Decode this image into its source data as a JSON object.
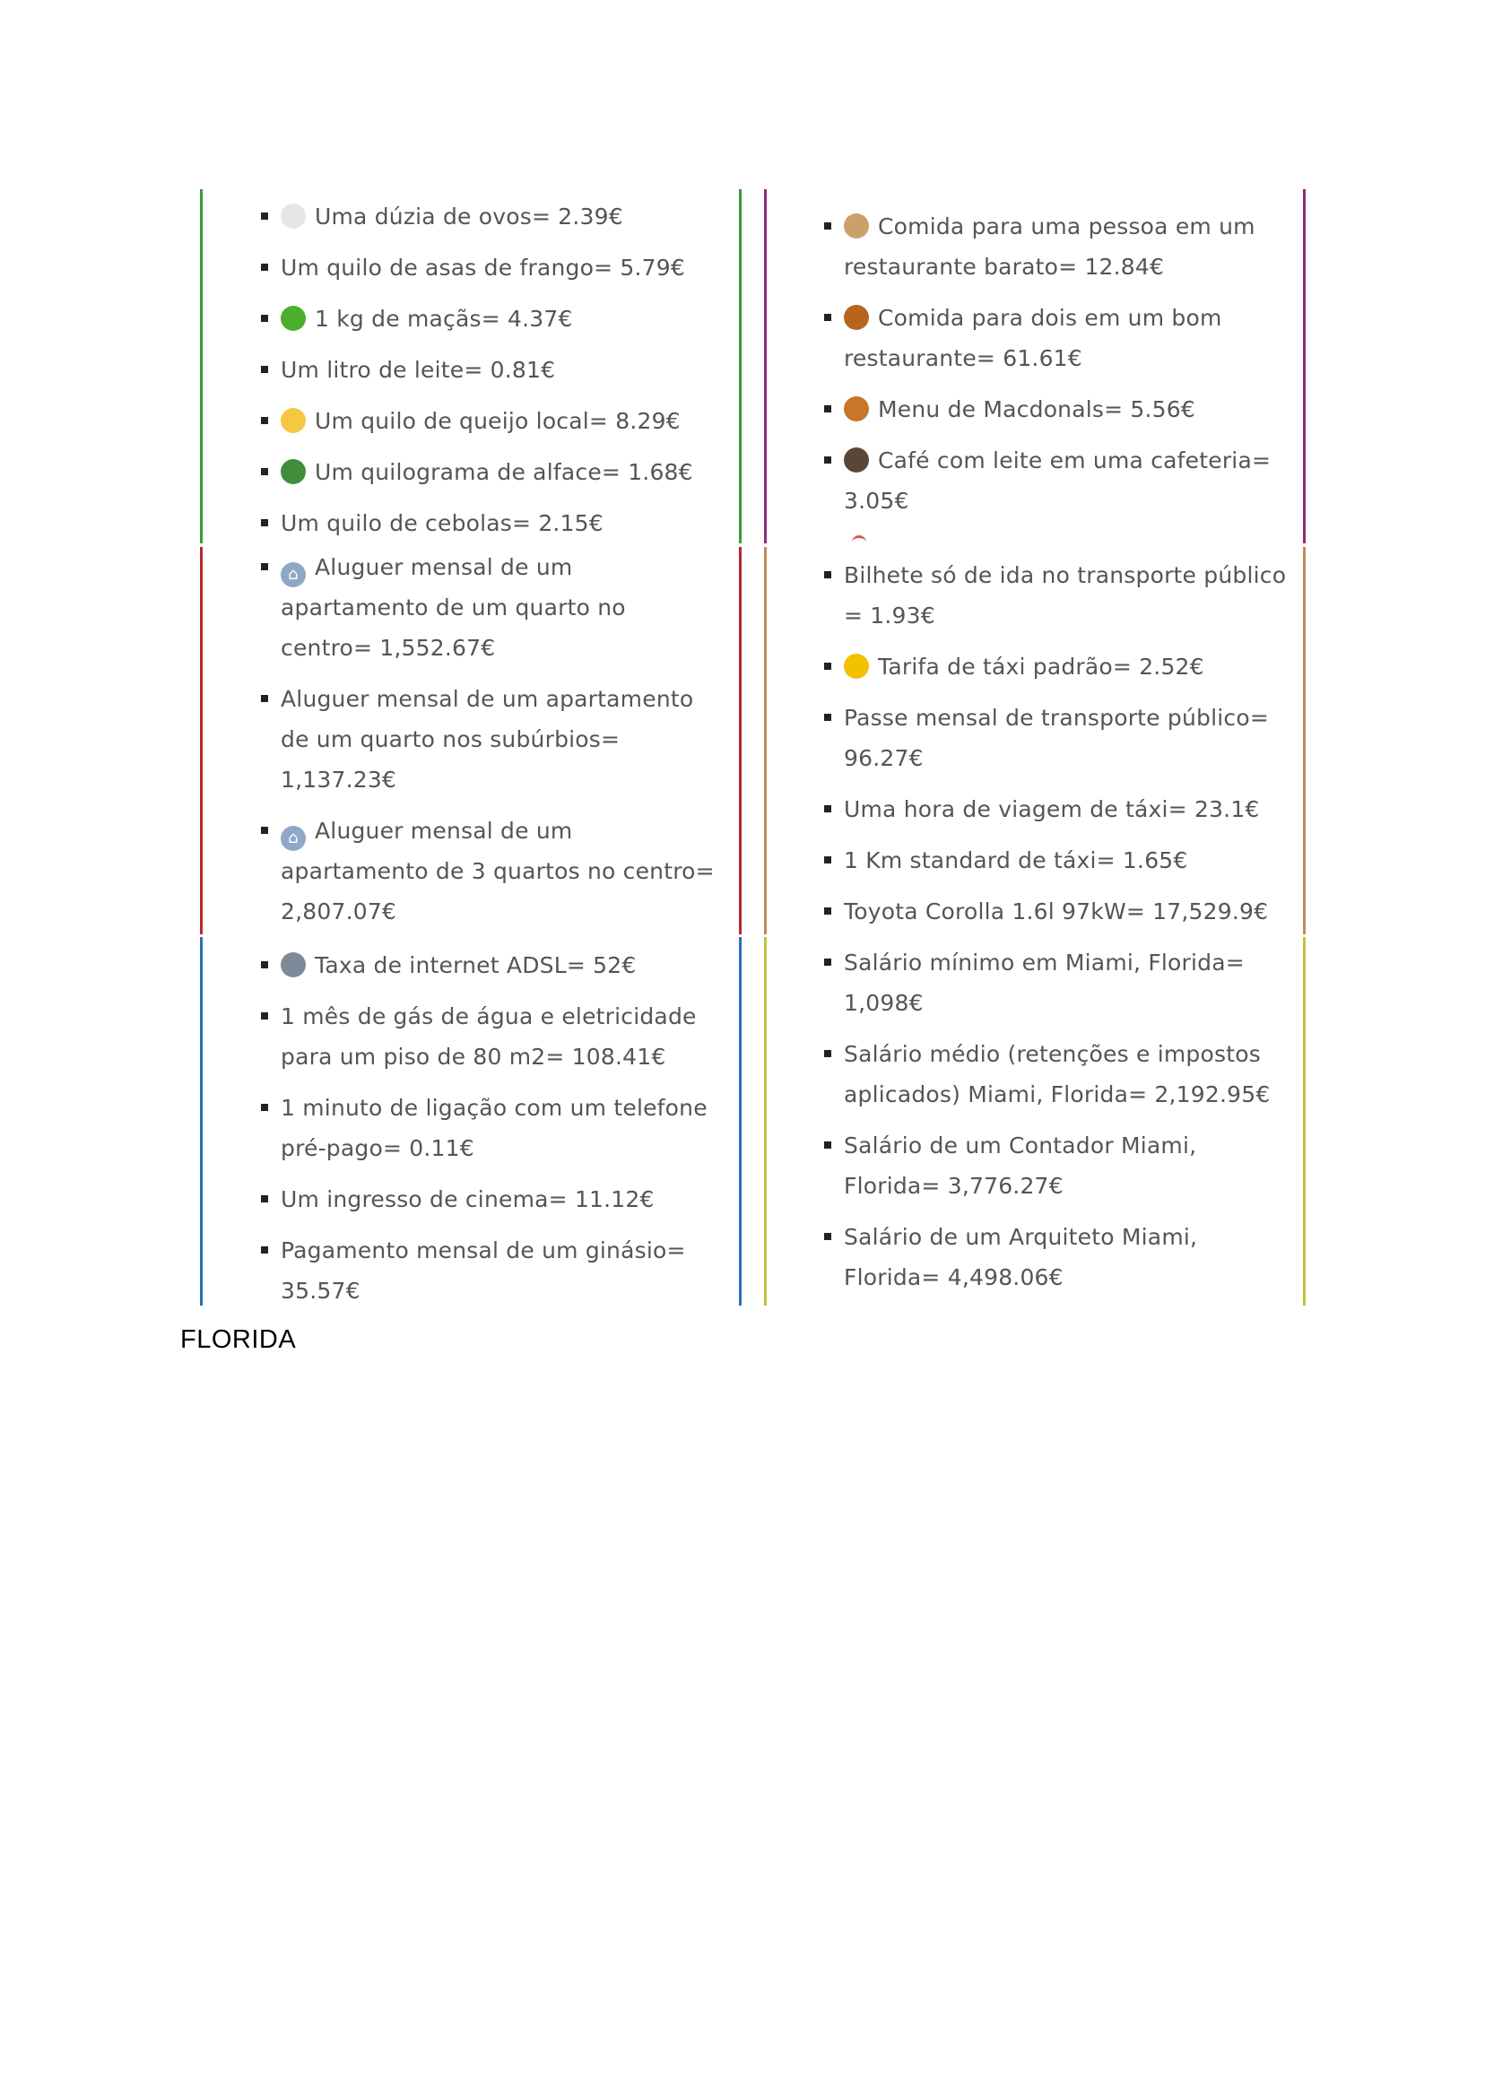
{
  "panels": [
    {
      "id": "food",
      "color": "#3a9a3a",
      "items": [
        {
          "icon": "egg-icon",
          "icon_color": "#e6e6e6",
          "text": "Uma dúzia de ovos= 2.39€"
        },
        {
          "icon": "",
          "text": "Um quilo de asas de frango= 5.79€"
        },
        {
          "icon": "green-apple-icon",
          "icon_color": "#4caf2a",
          "text": "1 kg de maçãs= 4.37€"
        },
        {
          "icon": "",
          "text": "Um litro de leite= 0.81€"
        },
        {
          "icon": "cheese-icon",
          "icon_color": "#f5c842",
          "text": "Um quilo de queijo local= 8.29€"
        },
        {
          "icon": "salad-icon",
          "icon_color": "#3f8f3a",
          "text": "Um quilograma de alface= 1.68€"
        },
        {
          "icon": "",
          "text": "Um quilo de cebolas= 2.15€"
        }
      ]
    },
    {
      "id": "restaurants",
      "color": "#8e2a7a",
      "items": [
        {
          "icon": "burrito-icon",
          "icon_color": "#c9a26b",
          "text": "Comida para uma pessoa em um restaurante barato= 12.84€"
        },
        {
          "icon": "shallow-pan-icon",
          "icon_color": "#b5651d",
          "text": "Comida para dois em um bom restaurante= 61.61€"
        },
        {
          "icon": "hamburger-icon",
          "icon_color": "#c8772a",
          "text": "Menu de Macdonals= 5.56€"
        },
        {
          "icon": "coffee-icon",
          "icon_color": "#5a4636",
          "text": "Café com leite em uma cafeteria= 3.05€"
        }
      ]
    },
    {
      "id": "housing",
      "color": "#b22a2a",
      "items": [
        {
          "icon": "house-icon",
          "icon_color": "#8fa8c8",
          "text": "Aluguer mensal de um apartamento de um quarto no centro= 1,552.67€"
        },
        {
          "icon": "",
          "text": "Aluguer mensal de um apartamento de um quarto nos subúrbios= 1,137.23€"
        },
        {
          "icon": "house-icon",
          "icon_color": "#8fa8c8",
          "text": "Aluguer mensal de um apartamento de 3 quartos no centro= 2,807.07€"
        }
      ]
    },
    {
      "id": "transport",
      "color": "#c08a5a",
      "items": [
        {
          "icon": "",
          "text": "Bilhete só de ida no transporte público = 1.93€"
        },
        {
          "icon": "taxi-icon",
          "icon_color": "#f2c200",
          "text": "Tarifa de táxi padrão= 2.52€"
        },
        {
          "icon": "",
          "text": "Passe mensal de transporte público= 96.27€"
        },
        {
          "icon": "",
          "text": "Uma hora de viagem de táxi= 23.1€"
        },
        {
          "icon": "",
          "text": "1 Km standard de táxi= 1.65€"
        },
        {
          "icon": "",
          "text": "Toyota Corolla 1.6l 97kW= 17,529.9€"
        }
      ]
    },
    {
      "id": "utilities",
      "color": "#2a6eb0",
      "items": [
        {
          "icon": "satellite-antenna-icon",
          "icon_color": "#7d8a99",
          "text": "Taxa de internet ADSL= 52€"
        },
        {
          "icon": "",
          "text": "1 mês de gás de água e eletricidade para um piso de 80 m2= 108.41€"
        },
        {
          "icon": "",
          "text": "1 minuto de ligação com um telefone pré-pago= 0.11€"
        },
        {
          "icon": "",
          "text": "Um ingresso de cinema= 11.12€"
        },
        {
          "icon": "",
          "text": "Pagamento mensal de um ginásio= 35.57€"
        }
      ]
    },
    {
      "id": "salaries",
      "color": "#c2c23a",
      "items": [
        {
          "icon": "",
          "text": "Salário mínimo em Miami, Florida= 1,098€"
        },
        {
          "icon": "",
          "text": "Salário médio (retenções e impostos aplicados) Miami, Florida= 2,192.95€"
        },
        {
          "icon": "",
          "text": "Salário de um Contador Miami, Florida= 3,776.27€"
        },
        {
          "icon": "",
          "text": "Salário de um Arquiteto Miami, Florida= 4,498.06€"
        }
      ]
    }
  ],
  "footer": {
    "label": "FLORIDA"
  },
  "icon_glyphs": {
    "egg-icon": "",
    "green-apple-icon": "",
    "cheese-icon": "",
    "salad-icon": "",
    "burrito-icon": "",
    "shallow-pan-icon": "",
    "hamburger-icon": "",
    "coffee-icon": "",
    "house-icon": "⌂",
    "taxi-icon": "",
    "satellite-antenna-icon": ""
  }
}
